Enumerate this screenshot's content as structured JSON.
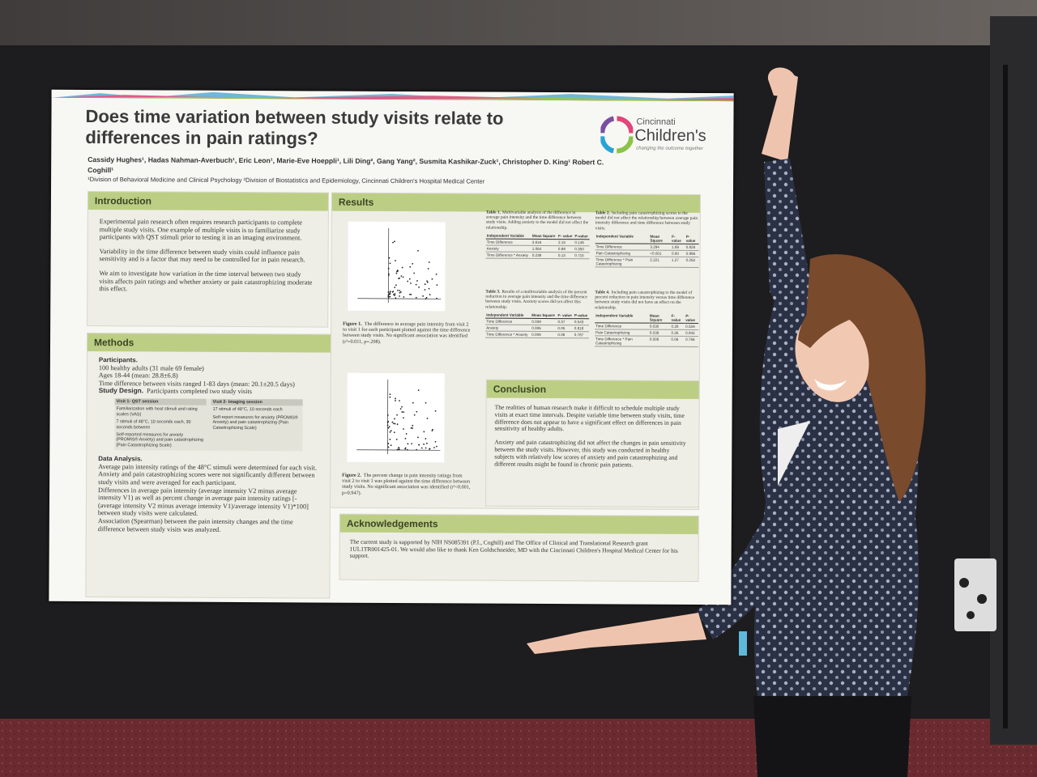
{
  "poster": {
    "title": "Does time variation between study visits relate to differences in pain ratings?",
    "logo": {
      "name_top": "Cincinnati",
      "name": "Children's",
      "tagline": "changing the outcome together"
    },
    "authors": "Cassidy Hughes¹, Hadas Nahman-Averbuch¹, Eric Leon¹, Marie-Eve Hoeppli¹, Lili Ding², Gang Yang², Susmita Kashikar-Zuck¹, Christopher D. King¹ Robert C. Coghill¹",
    "affiliations": "¹Division of Behavioral Medicine and Clinical Psychology ²Division of Biostatistics and Epidemiology, Cincinnati Children's Hospital Medical Center",
    "introduction": {
      "heading": "Introduction",
      "paragraphs": [
        "Experimental pain research often requires research participants to complete multiple study visits. One example of multiple visits is to familiarize study participants with QST stimuli prior to testing it in an imaging environment.",
        "Variability in the time difference between study visits could influence pain sensitivity and is a factor that may need to be controlled for in pain research.",
        "We aim to investigate how variation in the time interval between two study visits affects pain ratings and whether anxiety or pain catastrophizing moderate this effect."
      ]
    },
    "methods": {
      "heading": "Methods",
      "participants_label": "Participants.",
      "participants": [
        "100 healthy adults (31 male 69 female)",
        "Ages 18-44 (mean: 28.8±6.8)",
        "Time difference between visits ranged 1-83 days (mean: 20.1±20.5 days)"
      ],
      "study_design_label": "Study Design.",
      "study_design": "Participants completed two study visits",
      "visit1": {
        "header": "Visit 1- QST session",
        "items": [
          "Familiarization with heat stimuli and rating scales (VAS)",
          "7 stimuli of 48°C, 10 seconds each, 30 seconds between",
          "Self-reported measures for anxiety (PROMIS® Anxiety) and pain catastrophizing (Pain Catastrophizing Scale)"
        ]
      },
      "visit2": {
        "header": "Visit 2- Imaging session",
        "items": [
          "17 stimuli of 48°C, 10 seconds each",
          "Self-report measures for anxiety (PROMIS® Anxiety) and pain catastrophizing (Pain Catastrophizing Scale)"
        ]
      },
      "data_analysis_label": "Data Analysis.",
      "data_analysis": [
        "Average pain intensity ratings of the 48°C stimuli were determined for each visit.",
        "Anxiety and pain catastrophizing scores were not significantly different between study visits and were averaged for each participant.",
        "Differences in average pain intensity (average intensity V2 minus average intensity V1) as well as percent change in average pain intensity ratings [-(average intensity V2 minus average intensity V1)/average intensity V1)*100] between study visits were calculated.",
        "Association (Spearman) between the pain intensity changes and the time difference between study visits was analyzed."
      ]
    },
    "results": {
      "heading": "Results",
      "figure1": {
        "label": "Figure 1.",
        "text": "The difference in average pain intensity from visit 2 to visit 1 for each participant plotted against the time difference between study visits. No significant association was identified (r²=0.011, p=.298)."
      },
      "figure2": {
        "label": "Figure 2.",
        "text": "The percent change in pain intensity ratings from visit 2 to visit 1 was plotted against the time difference between study visits. No significant association was identified (r²<0.001, p=0.947)."
      },
      "tables": [
        {
          "label": "Table 1.",
          "text": "Multivariable analysis of the difference in average pain intensity and the time difference between study visits. Adding anxiety to the model did not affect the relationship.",
          "header": [
            "Independent Variable",
            "Mean Square",
            "F- value",
            "P-value"
          ],
          "rows": [
            [
              "Time Difference",
              "3.616",
              "2.15",
              "0.146"
            ],
            [
              "Anxiety",
              "1.064",
              "0.88",
              "0.350"
            ],
            [
              "Time Difference * Anxiety",
              "0.238",
              "0.13",
              "0.715"
            ]
          ]
        },
        {
          "label": "Table 2.",
          "text": "Including pain catastrophizing scores to the model did not affect the relationship between average pain intensity difference and time difference between study visits.",
          "header": [
            "Independent Variable",
            "Mean Square",
            "F- value",
            "P-value"
          ],
          "rows": [
            [
              "Time Difference",
              "3.294",
              "1.89",
              "0.828"
            ],
            [
              "Pain Catastrophizing",
              "<0.001",
              "0.00",
              "0.996"
            ],
            [
              "Time Difference * Pain Catastrophizing",
              "2.221",
              "1.27",
              "0.262"
            ]
          ]
        },
        {
          "label": "Table 3.",
          "text": "Results of a multivariable analysis of the percent reduction in average pain intensity and the time difference between study visits. Anxiety scores did not affect this relationship.",
          "header": [
            "Independent Variable",
            "Mean Square",
            "F- value",
            "P-value"
          ],
          "rows": [
            [
              "Time Difference",
              "0.039",
              "0.37",
              "0.543"
            ],
            [
              "Anxiety",
              "0.006",
              "0.05",
              "0.818"
            ],
            [
              "Time Difference * Anxiety",
              "0.009",
              "0.08",
              "0.787"
            ]
          ]
        },
        {
          "label": "Table 4.",
          "text": "Including pain catastrophizing to the model of percent reduction in pain intensity versus time difference between study visits did not have an effect on the relationship.",
          "header": [
            "Independent Variable",
            "Mean Square",
            "F- value",
            "P-value"
          ],
          "rows": [
            [
              "Time Difference",
              "0.030",
              "0.28",
              "0.559"
            ],
            [
              "Pain Catastrophizing",
              "0.039",
              "0.36",
              "0.942"
            ],
            [
              "Time Difference * Pain Catastrophizing",
              "0.006",
              "0.06",
              "0.766"
            ]
          ]
        }
      ]
    },
    "conclusion": {
      "heading": "Conclusion",
      "paragraphs": [
        "The realities of human research make it difficult to schedule multiple study visits at exact time intervals. Despite variable time between study visits, time difference does not appear to have a significant effect on differences in pain sensitivity of healthy adults.",
        "Anxiety and pain catastrophizing did not affect the changes in pain sensitivity between the study visits. However, this study was conducted in healthy subjects with relatively low scores of anxiety and pain catastrophizing and different results might be found in chronic pain patients."
      ]
    },
    "acknowledgements": {
      "heading": "Acknowledgements",
      "text": "The current study is supported by NIH NS085391 (P.I., Coghill) and The Office of Clinical and Translational Research grant 1UL1TR001425-01. We would also like to thank Ken Goldschneider, MD with the Cincinnati Children's Hospital Medical Center for his support."
    }
  }
}
